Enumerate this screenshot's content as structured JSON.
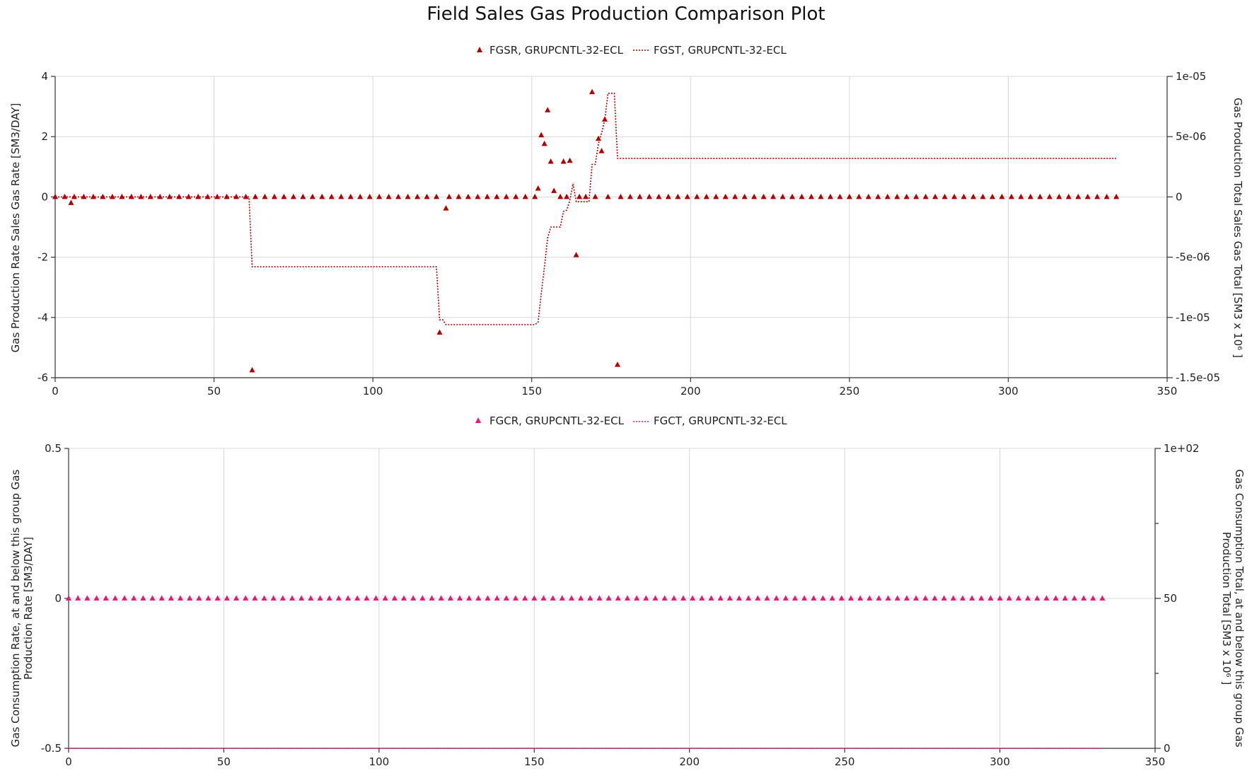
{
  "title": "Field Sales Gas Production Comparison Plot",
  "colors": {
    "top": "#b00000",
    "bottom": "#e8177d"
  },
  "chart_data": [
    {
      "type": "line",
      "legend_placement": "top-center",
      "grid": true,
      "x_ticks": [
        "0",
        "50",
        "100",
        "150",
        "200",
        "250",
        "300",
        "350"
      ],
      "y_left_ticks": [
        "4",
        "2",
        "0",
        "-2",
        "-4",
        "-6"
      ],
      "y_right_ticks": [
        "1e-05",
        "5e-06",
        "0",
        "-5e-06",
        "-1e-05",
        "-1.5e-05"
      ],
      "ylabel_left": "Gas Production Rate Sales Gas Rate [SM3/DAY]",
      "ylabel_right": "Gas Production Total Sales Gas Total [SM3 x 10⁶ ]",
      "xlim": [
        0,
        350
      ],
      "ylim_left": [
        -6,
        4
      ],
      "ylim_right": [
        -1.5e-05,
        1e-05
      ],
      "series": [
        {
          "name": "FGSR, GRUPCNTL-32-ECL",
          "style": "triangle-markers",
          "axis": "left",
          "points": [
            [
              0,
              0
            ],
            [
              3,
              0
            ],
            [
              5,
              -0.2
            ],
            [
              6,
              0
            ],
            [
              9,
              0
            ],
            [
              12,
              0
            ],
            [
              15,
              0
            ],
            [
              18,
              0
            ],
            [
              21,
              0
            ],
            [
              24,
              0
            ],
            [
              27,
              0
            ],
            [
              30,
              0
            ],
            [
              33,
              0
            ],
            [
              36,
              0
            ],
            [
              39,
              0
            ],
            [
              42,
              0
            ],
            [
              45,
              0
            ],
            [
              48,
              0
            ],
            [
              51,
              0
            ],
            [
              54,
              0
            ],
            [
              57,
              0
            ],
            [
              60,
              0
            ],
            [
              62,
              -5.75
            ],
            [
              63,
              0
            ],
            [
              66,
              0
            ],
            [
              69,
              0
            ],
            [
              72,
              0
            ],
            [
              75,
              0
            ],
            [
              78,
              0
            ],
            [
              81,
              0
            ],
            [
              84,
              0
            ],
            [
              87,
              0
            ],
            [
              90,
              0
            ],
            [
              93,
              0
            ],
            [
              96,
              0
            ],
            [
              99,
              0
            ],
            [
              102,
              0
            ],
            [
              105,
              0
            ],
            [
              108,
              0
            ],
            [
              111,
              0
            ],
            [
              114,
              0
            ],
            [
              117,
              0
            ],
            [
              120,
              0
            ],
            [
              121,
              -4.5
            ],
            [
              123,
              -0.38
            ],
            [
              124,
              0
            ],
            [
              127,
              0
            ],
            [
              130,
              0
            ],
            [
              133,
              0
            ],
            [
              136,
              0
            ],
            [
              139,
              0
            ],
            [
              142,
              0
            ],
            [
              145,
              0
            ],
            [
              148,
              0
            ],
            [
              151,
              0
            ],
            [
              152,
              0.28
            ],
            [
              153,
              2.05
            ],
            [
              154,
              1.76
            ],
            [
              155,
              2.88
            ],
            [
              156,
              1.17
            ],
            [
              157,
              0.2
            ],
            [
              159,
              0
            ],
            [
              160,
              1.17
            ],
            [
              161,
              0
            ],
            [
              162,
              1.2
            ],
            [
              164,
              -1.93
            ],
            [
              165,
              0
            ],
            [
              167,
              0
            ],
            [
              169,
              3.48
            ],
            [
              170,
              0
            ],
            [
              171,
              1.93
            ],
            [
              172,
              1.52
            ],
            [
              173,
              2.57
            ],
            [
              174,
              0
            ],
            [
              177,
              -5.57
            ],
            [
              178,
              0
            ],
            [
              181,
              0
            ],
            [
              184,
              0
            ],
            [
              187,
              0
            ],
            [
              190,
              0
            ],
            [
              193,
              0
            ],
            [
              196,
              0
            ],
            [
              199,
              0
            ],
            [
              202,
              0
            ],
            [
              205,
              0
            ],
            [
              208,
              0
            ],
            [
              211,
              0
            ],
            [
              214,
              0
            ],
            [
              217,
              0
            ],
            [
              220,
              0
            ],
            [
              223,
              0
            ],
            [
              226,
              0
            ],
            [
              229,
              0
            ],
            [
              232,
              0
            ],
            [
              235,
              0
            ],
            [
              238,
              0
            ],
            [
              241,
              0
            ],
            [
              244,
              0
            ],
            [
              247,
              0
            ],
            [
              250,
              0
            ],
            [
              253,
              0
            ],
            [
              256,
              0
            ],
            [
              259,
              0
            ],
            [
              262,
              0
            ],
            [
              265,
              0
            ],
            [
              268,
              0
            ],
            [
              271,
              0
            ],
            [
              274,
              0
            ],
            [
              277,
              0
            ],
            [
              280,
              0
            ],
            [
              283,
              0
            ],
            [
              286,
              0
            ],
            [
              289,
              0
            ],
            [
              292,
              0
            ],
            [
              295,
              0
            ],
            [
              298,
              0
            ],
            [
              301,
              0
            ],
            [
              304,
              0
            ],
            [
              307,
              0
            ],
            [
              310,
              0
            ],
            [
              313,
              0
            ],
            [
              316,
              0
            ],
            [
              319,
              0
            ],
            [
              322,
              0
            ],
            [
              325,
              0
            ],
            [
              328,
              0
            ],
            [
              331,
              0
            ],
            [
              334,
              0
            ]
          ]
        },
        {
          "name": "FGST, GRUPCNTL-32-ECL",
          "style": "dotted-line",
          "axis": "right",
          "points": [
            [
              0,
              0
            ],
            [
              61,
              0
            ],
            [
              62,
              -5.8e-06
            ],
            [
              120,
              -5.8e-06
            ],
            [
              121,
              -1.02e-05
            ],
            [
              122,
              -1.02e-05
            ],
            [
              123,
              -1.06e-05
            ],
            [
              151,
              -1.06e-05
            ],
            [
              152,
              -1.04e-05
            ],
            [
              153,
              -8e-06
            ],
            [
              154,
              -5.8e-06
            ],
            [
              155,
              -3.4e-06
            ],
            [
              156,
              -2.5e-06
            ],
            [
              159,
              -2.5e-06
            ],
            [
              160,
              -1.2e-06
            ],
            [
              161,
              -1.1e-06
            ],
            [
              162,
              -3e-07
            ],
            [
              163,
              1.1e-06
            ],
            [
              164,
              -4e-07
            ],
            [
              168,
              -4e-07
            ],
            [
              169,
              2.7e-06
            ],
            [
              170,
              2.7e-06
            ],
            [
              171,
              4.4e-06
            ],
            [
              172,
              5.3e-06
            ],
            [
              173,
              6.4e-06
            ],
            [
              174,
              8.6e-06
            ],
            [
              176,
              8.6e-06
            ],
            [
              177,
              3.2e-06
            ],
            [
              334,
              3.2e-06
            ]
          ]
        }
      ]
    },
    {
      "type": "line",
      "legend_placement": "top-center",
      "grid": true,
      "x_ticks": [
        "0",
        "50",
        "100",
        "150",
        "200",
        "250",
        "300",
        "350"
      ],
      "y_left_ticks": [
        "0.5",
        "0",
        "-0.5"
      ],
      "y_right_ticks": [
        "1e+02",
        "50",
        "0"
      ],
      "ylabel_left": "Gas Consumption Rate, at and below this group Gas Production Rate [SM3/DAY]",
      "ylabel_right": "Gas Consumption Total, at and below this group Gas Production Total [SM3 x 10⁶ ]",
      "xlim": [
        0,
        350
      ],
      "ylim_left": [
        -0.5,
        0.5
      ],
      "ylim_right": [
        0,
        100
      ],
      "series": [
        {
          "name": "FGCR, GRUPCNTL-32-ECL",
          "style": "triangle-markers",
          "axis": "left",
          "x_start": 0,
          "x_step": 3,
          "x_end": 333,
          "value": 0
        },
        {
          "name": "FGCT, GRUPCNTL-32-ECL",
          "style": "dotted-line",
          "axis": "right",
          "points": [
            [
              0,
              0
            ],
            [
              333,
              0
            ]
          ]
        }
      ]
    }
  ]
}
